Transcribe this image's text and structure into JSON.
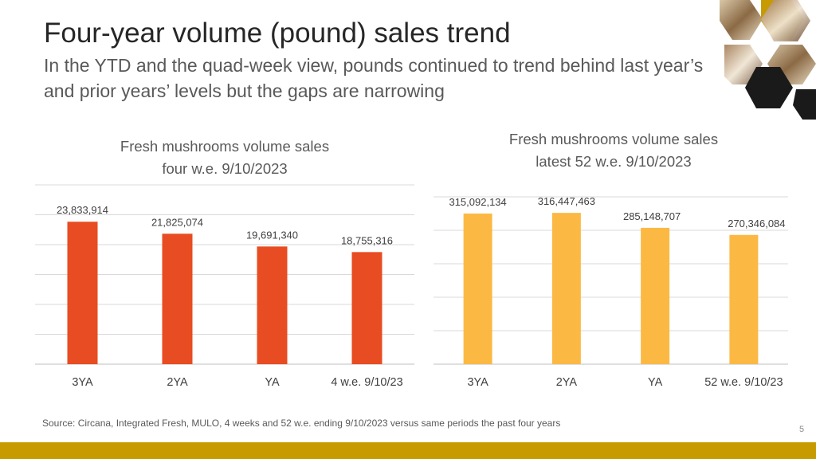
{
  "slide": {
    "title": "Four-year volume (pound) sales trend",
    "subtitle": "In the YTD and the quad-week view, pounds continued to trend behind last year’s and prior years’ levels but the gaps are narrowing",
    "source": "Source: Circana, Integrated Fresh, MULO, 4 weeks and 52 w.e. ending 9/10/2023 versus same periods the past four years",
    "page_number": "5"
  },
  "colors": {
    "accent_gold": "#c79b00",
    "hex_dark": "#1a1a1a"
  },
  "decoration": {
    "icon": "mushroom-hexagon-photo-icon"
  },
  "chart_data": [
    {
      "type": "bar",
      "title_line1": "Fresh mushrooms volume sales",
      "title_line2": "four w.e. 9/10/2023",
      "categories": [
        "3YA",
        "2YA",
        "YA",
        "4 w.e. 9/10/23"
      ],
      "values": [
        23833914,
        21825074,
        19691340,
        18755316
      ],
      "value_labels": [
        "23,833,914",
        "21,825,074",
        "19,691,340",
        "18,755,316"
      ],
      "ylim": [
        0,
        30000000
      ],
      "grid": true,
      "color": "#e84c22"
    },
    {
      "type": "bar",
      "title_line1": "Fresh mushrooms volume sales",
      "title_line2": "latest 52 w.e. 9/10/2023",
      "categories": [
        "3YA",
        "2YA",
        "YA",
        "52 w.e. 9/10/23"
      ],
      "values": [
        315092134,
        316447463,
        285148707,
        270346084
      ],
      "value_labels": [
        "315,092,134",
        "316,447,463",
        "285,148,707",
        "270,346,084"
      ],
      "ylim": [
        0,
        350000000
      ],
      "grid": true,
      "color": "#fbb944"
    }
  ]
}
